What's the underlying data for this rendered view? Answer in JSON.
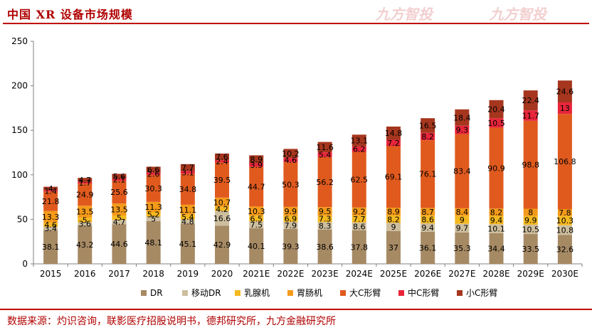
{
  "page": {
    "title": "中国 XR 设备市场规模",
    "watermark": "九方智投",
    "source": "数据来源：灼识咨询，联影医疗招股说明书，德邦研究所，九方金融研究所"
  },
  "colors": {
    "DR": "#A68A64",
    "移动DR": "#CDBE9E",
    "乳腺机": "#F4B820",
    "胃肠机": "#F49A1A",
    "大C形臂": "#E05A1E",
    "中C形臂": "#E8253A",
    "小C形臂": "#A6361E"
  },
  "chart_data": {
    "type": "bar",
    "stacked": true,
    "title": "",
    "xlabel": "",
    "ylabel": "",
    "ylim": [
      0,
      250
    ],
    "yticks": [
      0,
      50,
      100,
      150,
      200,
      250
    ],
    "grid": false,
    "legend_position": "bottom",
    "categories": [
      "2015",
      "2016",
      "2017",
      "2018",
      "2019",
      "2020",
      "2021E",
      "2022E",
      "2023E",
      "2024E",
      "2025E",
      "2026E",
      "2027E",
      "2028E",
      "2029E",
      "2030E"
    ],
    "series": [
      {
        "name": "DR",
        "values": [
          38.1,
          43.2,
          44.6,
          48.1,
          45.1,
          42.9,
          40.1,
          39.3,
          38.6,
          37.8,
          37,
          36.1,
          35.3,
          34.4,
          33.5,
          32.6
        ]
      },
      {
        "name": "移动DR",
        "values": [
          3.4,
          3.6,
          4.7,
          5,
          4.8,
          16.6,
          7.5,
          7.9,
          8.3,
          8.6,
          9,
          9.4,
          9.7,
          10.1,
          10.5,
          10.8
        ]
      },
      {
        "name": "乳腺机",
        "values": [
          4.6,
          5,
          5,
          5.2,
          5.4,
          4.2,
          6.5,
          6.9,
          7.3,
          7.7,
          8.2,
          8.6,
          9,
          9.4,
          9.9,
          10.3
        ]
      },
      {
        "name": "胃肠机",
        "values": [
          13.3,
          13.5,
          13.5,
          11.3,
          11.1,
          10.7,
          10.3,
          9.9,
          9.5,
          9.2,
          8.9,
          8.7,
          8.4,
          8.2,
          8,
          7.8
        ]
      },
      {
        "name": "大C形臂",
        "values": [
          21.8,
          24.9,
          25.6,
          30.3,
          34.8,
          39.5,
          44.7,
          50.3,
          56.2,
          62.5,
          69.1,
          76.1,
          83.4,
          90.9,
          98.8,
          106.8
        ]
      },
      {
        "name": "中C形臂",
        "values": [
          1.4,
          1.7,
          2.1,
          2.6,
          3.1,
          2.4,
          3.9,
          4.6,
          5.4,
          6.2,
          7.2,
          8.2,
          9.3,
          10.5,
          11.7,
          13
        ]
      },
      {
        "name": "小C形臂",
        "values": [
          4,
          4.7,
          5.6,
          6.6,
          7.7,
          7.6,
          8.9,
          10.2,
          11.6,
          13.1,
          14.8,
          16.5,
          18.4,
          20.4,
          22.4,
          24.6
        ]
      }
    ]
  }
}
